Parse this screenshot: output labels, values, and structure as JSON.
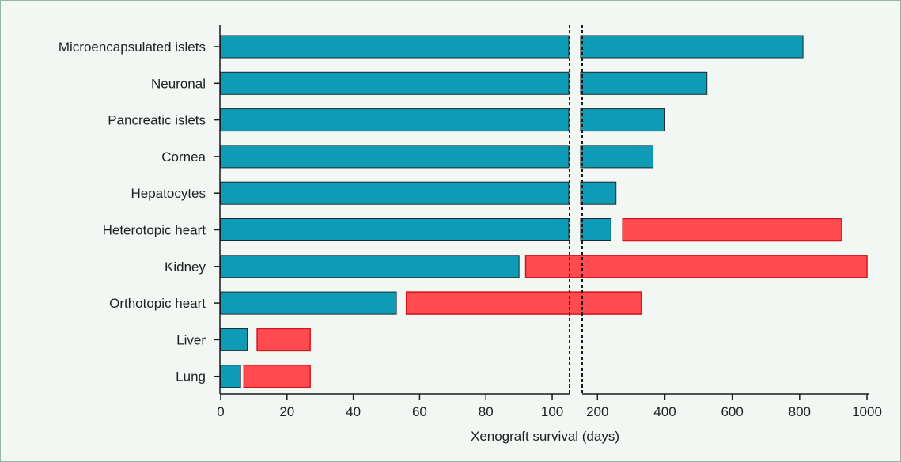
{
  "chart_data": {
    "type": "bar",
    "orientation": "horizontal",
    "categories": [
      "Microencapsulated islets",
      "Neuronal",
      "Pancreatic islets",
      "Cornea",
      "Hepatocytes",
      "Heterotopic heart",
      "Kidney",
      "Orthotopic heart",
      "Liver",
      "Lung"
    ],
    "series": [
      {
        "values": [
          810,
          525,
          400,
          365,
          255,
          240,
          90,
          53,
          8,
          6
        ]
      },
      {
        "ranges": [
          null,
          null,
          null,
          null,
          null,
          [
            275,
            925
          ],
          [
            92,
            1000
          ],
          [
            56,
            330
          ],
          [
            11,
            27
          ],
          [
            7,
            27
          ]
        ]
      }
    ],
    "colors": {
      "primary": "#0d9bb5",
      "secondary": "#ff4b4f"
    },
    "xlabel": "Xenograft survival (days)",
    "x_axis_segments": [
      {
        "range": [
          0,
          105
        ],
        "ticks": [
          0,
          20,
          40,
          60,
          80,
          100
        ]
      },
      {
        "range": [
          150,
          1000
        ],
        "ticks": [
          200,
          400,
          600,
          800,
          1000
        ]
      }
    ],
    "axis_break": true
  }
}
